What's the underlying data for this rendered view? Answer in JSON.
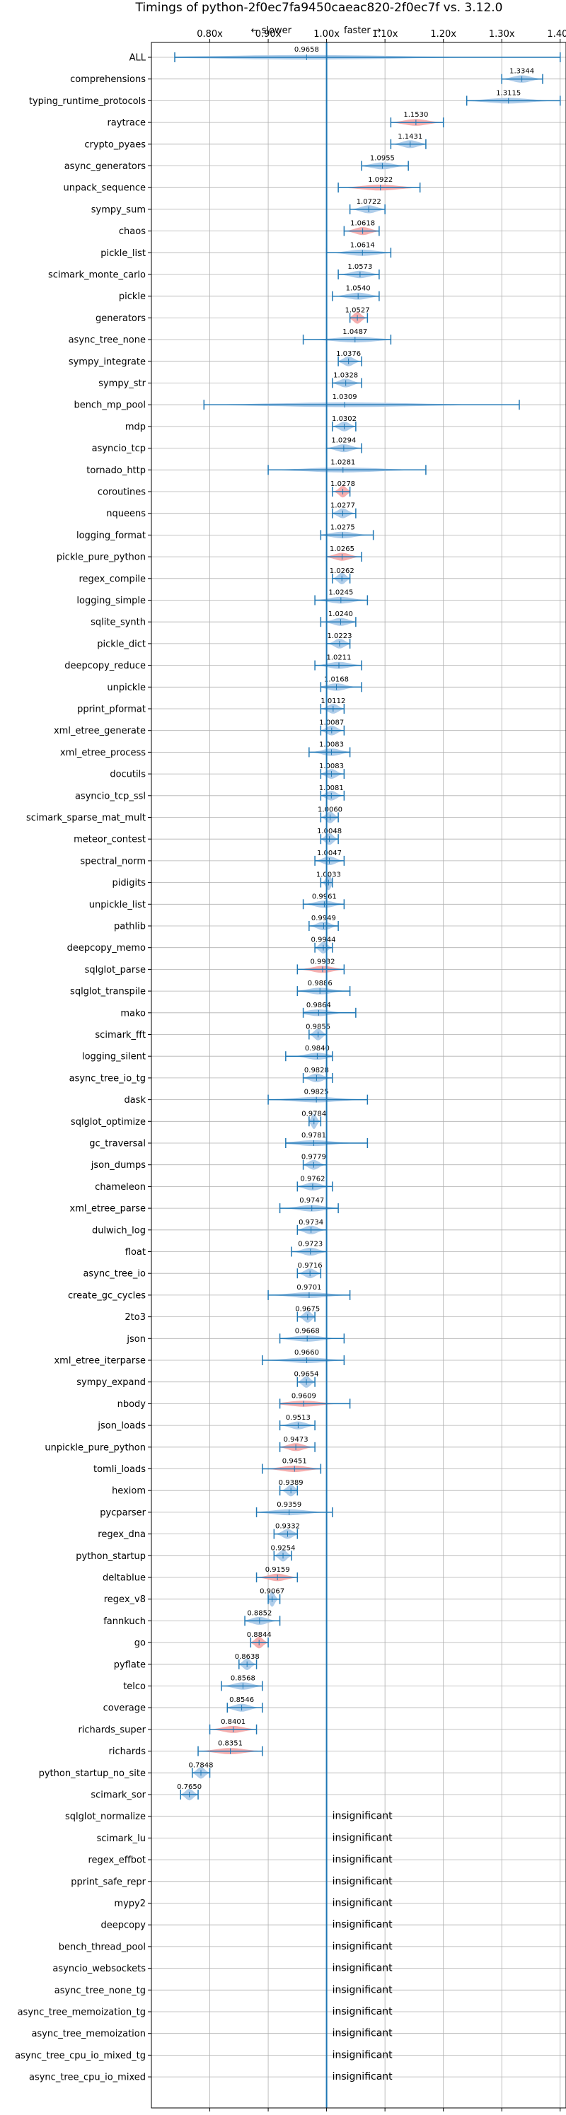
{
  "chart_data": {
    "type": "violin",
    "title": "Timings of python-2f0ec7fa9450caeac820-2f0ec7f vs. 3.12.0",
    "xlim": [
      0.7,
      1.41
    ],
    "xticks": [
      0.8,
      0.9,
      1.0,
      1.1,
      1.2,
      1.3,
      1.4
    ],
    "xtick_labels": [
      "0.80x",
      "0.90x",
      "1.00x",
      "1.10x",
      "1.20x",
      "1.30x",
      "1.40x"
    ],
    "annotation_slower": "← slower",
    "annotation_faster": "faster →",
    "insignificant_label": "insignificant",
    "colors": {
      "normal": "#a6c8e8",
      "highlight": "#f4a6a6",
      "line": "#1f77b4"
    },
    "grid": true,
    "benchmarks": [
      {
        "name": "ALL",
        "value": 0.9658,
        "min": 0.74,
        "max": 1.4,
        "hl": false
      },
      {
        "name": "comprehensions",
        "value": 1.3344,
        "min": 1.3,
        "max": 1.37,
        "hl": false
      },
      {
        "name": "typing_runtime_protocols",
        "value": 1.3115,
        "min": 1.24,
        "max": 1.4,
        "hl": false
      },
      {
        "name": "raytrace",
        "value": 1.153,
        "min": 1.11,
        "max": 1.2,
        "hl": true
      },
      {
        "name": "crypto_pyaes",
        "value": 1.1431,
        "min": 1.11,
        "max": 1.17,
        "hl": false
      },
      {
        "name": "async_generators",
        "value": 1.0955,
        "min": 1.06,
        "max": 1.14,
        "hl": false
      },
      {
        "name": "unpack_sequence",
        "value": 1.0922,
        "min": 1.02,
        "max": 1.16,
        "hl": true
      },
      {
        "name": "sympy_sum",
        "value": 1.0722,
        "min": 1.04,
        "max": 1.1,
        "hl": false
      },
      {
        "name": "chaos",
        "value": 1.0618,
        "min": 1.03,
        "max": 1.09,
        "hl": true
      },
      {
        "name": "pickle_list",
        "value": 1.0614,
        "min": 1.0,
        "max": 1.11,
        "hl": false
      },
      {
        "name": "scimark_monte_carlo",
        "value": 1.0573,
        "min": 1.02,
        "max": 1.09,
        "hl": false
      },
      {
        "name": "pickle",
        "value": 1.054,
        "min": 1.01,
        "max": 1.09,
        "hl": false
      },
      {
        "name": "generators",
        "value": 1.0527,
        "min": 1.04,
        "max": 1.07,
        "hl": true
      },
      {
        "name": "async_tree_none",
        "value": 1.0487,
        "min": 0.96,
        "max": 1.11,
        "hl": false
      },
      {
        "name": "sympy_integrate",
        "value": 1.0376,
        "min": 1.02,
        "max": 1.06,
        "hl": false
      },
      {
        "name": "sympy_str",
        "value": 1.0328,
        "min": 1.01,
        "max": 1.06,
        "hl": false
      },
      {
        "name": "bench_mp_pool",
        "value": 1.0309,
        "min": 0.79,
        "max": 1.33,
        "hl": false
      },
      {
        "name": "mdp",
        "value": 1.0302,
        "min": 1.01,
        "max": 1.05,
        "hl": false
      },
      {
        "name": "asyncio_tcp",
        "value": 1.0294,
        "min": 1.0,
        "max": 1.06,
        "hl": false
      },
      {
        "name": "tornado_http",
        "value": 1.0281,
        "min": 0.9,
        "max": 1.17,
        "hl": false
      },
      {
        "name": "coroutines",
        "value": 1.0278,
        "min": 1.01,
        "max": 1.04,
        "hl": true
      },
      {
        "name": "nqueens",
        "value": 1.0277,
        "min": 1.01,
        "max": 1.05,
        "hl": false
      },
      {
        "name": "logging_format",
        "value": 1.0275,
        "min": 0.99,
        "max": 1.08,
        "hl": false
      },
      {
        "name": "pickle_pure_python",
        "value": 1.0265,
        "min": 1.0,
        "max": 1.06,
        "hl": true
      },
      {
        "name": "regex_compile",
        "value": 1.0262,
        "min": 1.01,
        "max": 1.04,
        "hl": false
      },
      {
        "name": "logging_simple",
        "value": 1.0245,
        "min": 0.98,
        "max": 1.07,
        "hl": false
      },
      {
        "name": "sqlite_synth",
        "value": 1.024,
        "min": 0.99,
        "max": 1.05,
        "hl": false
      },
      {
        "name": "pickle_dict",
        "value": 1.0223,
        "min": 1.0,
        "max": 1.04,
        "hl": false
      },
      {
        "name": "deepcopy_reduce",
        "value": 1.0211,
        "min": 0.98,
        "max": 1.06,
        "hl": false
      },
      {
        "name": "unpickle",
        "value": 1.0168,
        "min": 0.99,
        "max": 1.06,
        "hl": false
      },
      {
        "name": "pprint_pformat",
        "value": 1.0112,
        "min": 0.99,
        "max": 1.03,
        "hl": false
      },
      {
        "name": "xml_etree_generate",
        "value": 1.0087,
        "min": 0.99,
        "max": 1.03,
        "hl": false
      },
      {
        "name": "xml_etree_process",
        "value": 1.0083,
        "min": 0.97,
        "max": 1.04,
        "hl": false
      },
      {
        "name": "docutils",
        "value": 1.0083,
        "min": 0.99,
        "max": 1.03,
        "hl": false
      },
      {
        "name": "asyncio_tcp_ssl",
        "value": 1.0081,
        "min": 0.99,
        "max": 1.03,
        "hl": false
      },
      {
        "name": "scimark_sparse_mat_mult",
        "value": 1.006,
        "min": 0.99,
        "max": 1.02,
        "hl": false
      },
      {
        "name": "meteor_contest",
        "value": 1.0048,
        "min": 0.99,
        "max": 1.02,
        "hl": false
      },
      {
        "name": "spectral_norm",
        "value": 1.0047,
        "min": 0.98,
        "max": 1.03,
        "hl": false
      },
      {
        "name": "pidigits",
        "value": 1.0033,
        "min": 0.99,
        "max": 1.01,
        "hl": false
      },
      {
        "name": "unpickle_list",
        "value": 0.9961,
        "min": 0.96,
        "max": 1.03,
        "hl": false
      },
      {
        "name": "pathlib",
        "value": 0.9949,
        "min": 0.97,
        "max": 1.02,
        "hl": false
      },
      {
        "name": "deepcopy_memo",
        "value": 0.9944,
        "min": 0.98,
        "max": 1.01,
        "hl": false
      },
      {
        "name": "sqlglot_parse",
        "value": 0.9932,
        "min": 0.95,
        "max": 1.03,
        "hl": true
      },
      {
        "name": "sqlglot_transpile",
        "value": 0.9886,
        "min": 0.95,
        "max": 1.04,
        "hl": false
      },
      {
        "name": "mako",
        "value": 0.9864,
        "min": 0.96,
        "max": 1.05,
        "hl": false
      },
      {
        "name": "scimark_fft",
        "value": 0.9855,
        "min": 0.97,
        "max": 1.0,
        "hl": false
      },
      {
        "name": "logging_silent",
        "value": 0.984,
        "min": 0.93,
        "max": 1.01,
        "hl": false
      },
      {
        "name": "async_tree_io_tg",
        "value": 0.9828,
        "min": 0.96,
        "max": 1.01,
        "hl": false
      },
      {
        "name": "dask",
        "value": 0.9825,
        "min": 0.9,
        "max": 1.07,
        "hl": false
      },
      {
        "name": "sqlglot_optimize",
        "value": 0.9784,
        "min": 0.97,
        "max": 0.99,
        "hl": false
      },
      {
        "name": "gc_traversal",
        "value": 0.9781,
        "min": 0.93,
        "max": 1.07,
        "hl": false
      },
      {
        "name": "json_dumps",
        "value": 0.9779,
        "min": 0.96,
        "max": 1.0,
        "hl": false
      },
      {
        "name": "chameleon",
        "value": 0.9762,
        "min": 0.95,
        "max": 1.01,
        "hl": false
      },
      {
        "name": "xml_etree_parse",
        "value": 0.9747,
        "min": 0.92,
        "max": 1.02,
        "hl": false
      },
      {
        "name": "dulwich_log",
        "value": 0.9734,
        "min": 0.95,
        "max": 1.0,
        "hl": false
      },
      {
        "name": "float",
        "value": 0.9723,
        "min": 0.94,
        "max": 1.0,
        "hl": false
      },
      {
        "name": "async_tree_io",
        "value": 0.9716,
        "min": 0.95,
        "max": 0.99,
        "hl": false
      },
      {
        "name": "create_gc_cycles",
        "value": 0.9701,
        "min": 0.9,
        "max": 1.04,
        "hl": false
      },
      {
        "name": "2to3",
        "value": 0.9675,
        "min": 0.95,
        "max": 0.98,
        "hl": false
      },
      {
        "name": "json",
        "value": 0.9668,
        "min": 0.92,
        "max": 1.03,
        "hl": false
      },
      {
        "name": "xml_etree_iterparse",
        "value": 0.966,
        "min": 0.89,
        "max": 1.03,
        "hl": false
      },
      {
        "name": "sympy_expand",
        "value": 0.9654,
        "min": 0.95,
        "max": 0.98,
        "hl": false
      },
      {
        "name": "nbody",
        "value": 0.9609,
        "min": 0.92,
        "max": 1.04,
        "hl": true
      },
      {
        "name": "json_loads",
        "value": 0.9513,
        "min": 0.92,
        "max": 0.98,
        "hl": false
      },
      {
        "name": "unpickle_pure_python",
        "value": 0.9473,
        "min": 0.92,
        "max": 0.98,
        "hl": true
      },
      {
        "name": "tomli_loads",
        "value": 0.9451,
        "min": 0.89,
        "max": 0.99,
        "hl": true
      },
      {
        "name": "hexiom",
        "value": 0.9389,
        "min": 0.92,
        "max": 0.95,
        "hl": false
      },
      {
        "name": "pycparser",
        "value": 0.9359,
        "min": 0.88,
        "max": 1.01,
        "hl": false
      },
      {
        "name": "regex_dna",
        "value": 0.9332,
        "min": 0.91,
        "max": 0.95,
        "hl": false
      },
      {
        "name": "python_startup",
        "value": 0.9254,
        "min": 0.91,
        "max": 0.94,
        "hl": false
      },
      {
        "name": "deltablue",
        "value": 0.9159,
        "min": 0.88,
        "max": 0.95,
        "hl": true
      },
      {
        "name": "regex_v8",
        "value": 0.9067,
        "min": 0.9,
        "max": 0.92,
        "hl": false
      },
      {
        "name": "fannkuch",
        "value": 0.8852,
        "min": 0.86,
        "max": 0.92,
        "hl": false
      },
      {
        "name": "go",
        "value": 0.8844,
        "min": 0.87,
        "max": 0.9,
        "hl": true
      },
      {
        "name": "pyflate",
        "value": 0.8638,
        "min": 0.85,
        "max": 0.88,
        "hl": false
      },
      {
        "name": "telco",
        "value": 0.8568,
        "min": 0.82,
        "max": 0.89,
        "hl": false
      },
      {
        "name": "coverage",
        "value": 0.8546,
        "min": 0.83,
        "max": 0.89,
        "hl": false
      },
      {
        "name": "richards_super",
        "value": 0.8401,
        "min": 0.8,
        "max": 0.88,
        "hl": true
      },
      {
        "name": "richards",
        "value": 0.8351,
        "min": 0.78,
        "max": 0.89,
        "hl": true
      },
      {
        "name": "python_startup_no_site",
        "value": 0.7848,
        "min": 0.77,
        "max": 0.8,
        "hl": false
      },
      {
        "name": "scimark_sor",
        "value": 0.765,
        "min": 0.75,
        "max": 0.78,
        "hl": false
      },
      {
        "name": "sqlglot_normalize",
        "insignificant": true
      },
      {
        "name": "scimark_lu",
        "insignificant": true
      },
      {
        "name": "regex_effbot",
        "insignificant": true
      },
      {
        "name": "pprint_safe_repr",
        "insignificant": true
      },
      {
        "name": "mypy2",
        "insignificant": true
      },
      {
        "name": "deepcopy",
        "insignificant": true
      },
      {
        "name": "bench_thread_pool",
        "insignificant": true
      },
      {
        "name": "asyncio_websockets",
        "insignificant": true
      },
      {
        "name": "async_tree_none_tg",
        "insignificant": true
      },
      {
        "name": "async_tree_memoization_tg",
        "insignificant": true
      },
      {
        "name": "async_tree_memoization",
        "insignificant": true
      },
      {
        "name": "async_tree_cpu_io_mixed_tg",
        "insignificant": true
      },
      {
        "name": "async_tree_cpu_io_mixed",
        "insignificant": true
      }
    ]
  }
}
